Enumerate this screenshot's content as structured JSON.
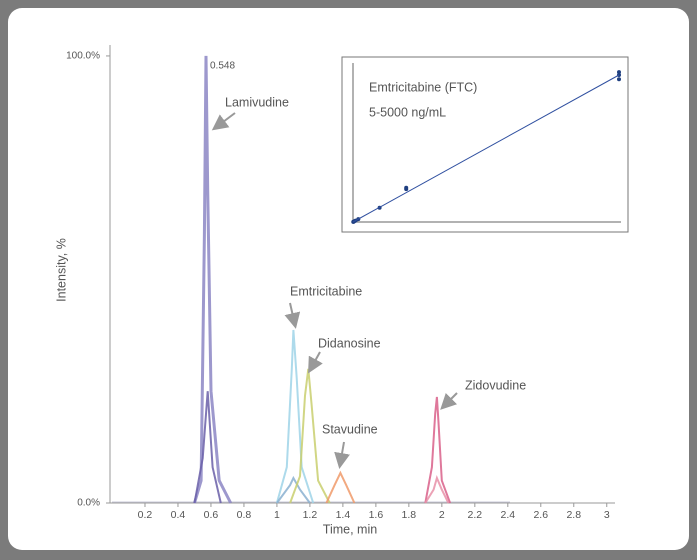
{
  "chart_data": [
    {
      "type": "line",
      "x_label": "Time, min",
      "y_label": "Intensity, %",
      "xlim": [
        0,
        3.05
      ],
      "xticks": [
        0.2,
        0.4,
        0.6,
        0.8,
        1.0,
        1.2,
        1.4,
        1.6,
        1.8,
        2.0,
        2.2,
        2.4,
        2.6,
        2.8,
        3.0
      ],
      "ylim": [
        0,
        102
      ],
      "yticks": [
        {
          "value": 0,
          "label": "0.0%"
        },
        {
          "value": 100,
          "label": "100.0%"
        }
      ],
      "series": [
        {
          "name": "Lamivudine",
          "color": "#8c86c4",
          "peak_label": "0.548",
          "x": [
            0.5,
            0.54,
            0.56,
            0.57,
            0.58,
            0.6,
            0.65,
            0.72
          ],
          "values": [
            0,
            5,
            60,
            100,
            70,
            25,
            5,
            0
          ]
        },
        {
          "color": "#6a5fa8",
          "x": [
            0.5,
            0.55,
            0.58,
            0.61,
            0.66
          ],
          "values": [
            0,
            10,
            25,
            8,
            0
          ]
        },
        {
          "name": "Emtricitabine",
          "color": "#9fd3e8",
          "x": [
            1.0,
            1.06,
            1.09,
            1.1,
            1.12,
            1.15,
            1.22
          ],
          "values": [
            0,
            8,
            30,
            38.7,
            28,
            8,
            0
          ]
        },
        {
          "color": "#8ab0d0",
          "x": [
            1.0,
            1.08,
            1.1,
            1.14,
            1.2
          ],
          "values": [
            0,
            4,
            5.6,
            3,
            0
          ]
        },
        {
          "name": "Didanosine",
          "color": "#c9cf6e",
          "x": [
            1.08,
            1.14,
            1.17,
            1.19,
            1.21,
            1.25,
            1.32
          ],
          "values": [
            0,
            6,
            24,
            30,
            22,
            5,
            0
          ]
        },
        {
          "name": "Stavudine",
          "color": "#f09a6a",
          "x": [
            1.3,
            1.35,
            1.385,
            1.42,
            1.47
          ],
          "values": [
            0,
            4,
            6.7,
            4,
            0
          ]
        },
        {
          "name": "Zidovudine",
          "color": "#d9608a",
          "x": [
            1.9,
            1.94,
            1.96,
            1.97,
            1.98,
            2.0,
            2.05
          ],
          "values": [
            0,
            8,
            20,
            23.7,
            18,
            5,
            0
          ]
        },
        {
          "color": "#e890a8",
          "x": [
            1.9,
            1.95,
            1.97,
            2.0,
            2.04
          ],
          "values": [
            0,
            3,
            5.6,
            3,
            0
          ]
        }
      ]
    },
    {
      "type": "scatter",
      "title": "Emtricitabine  (FTC)",
      "subtitle": "5-5000 ng/mL",
      "xlim": [
        0,
        5000
      ],
      "ylim": [
        0,
        1.1
      ],
      "series": [
        {
          "color": "#1f3f80",
          "x": [
            5,
            10,
            25,
            50,
            100,
            500,
            1000,
            1000,
            5000,
            5000,
            5000
          ],
          "values": [
            0.001,
            0.002,
            0.005,
            0.01,
            0.02,
            0.1,
            0.23,
            0.24,
            1.05,
            1.03,
            1.0
          ]
        },
        {
          "color": "#3050a0",
          "line": true,
          "x": [
            0,
            5000
          ],
          "values": [
            0,
            1.03
          ]
        }
      ]
    }
  ]
}
